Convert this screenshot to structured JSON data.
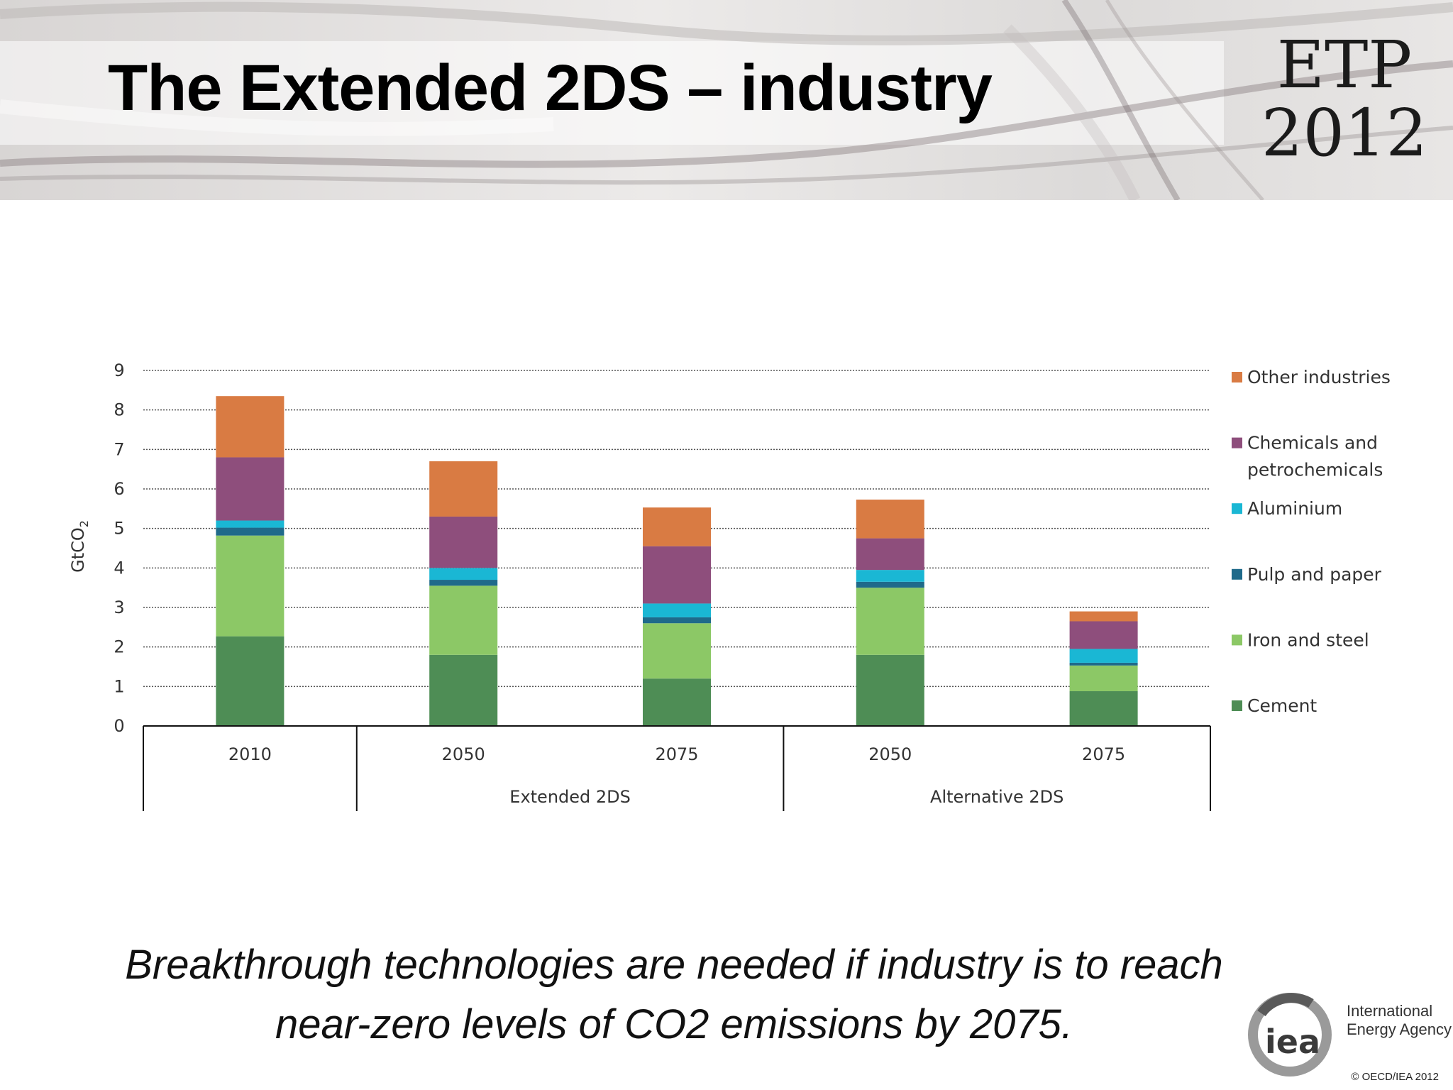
{
  "slide": {
    "title": "The Extended 2DS – industry",
    "badge_line1": "ETP",
    "badge_line2": "2012",
    "caption_line1": "Breakthrough technologies are needed if industry is to reach",
    "caption_line2": "near-zero levels of CO2 emissions by 2075.",
    "org_logo_text": "iea",
    "org_name_line1": "International",
    "org_name_line2": "Energy Agency",
    "copyright": "© OECD/IEA 2012"
  },
  "chart_data": {
    "type": "bar",
    "stacked": true,
    "ylabel": "GtCO",
    "ylabel_subscript": "2",
    "ylim": [
      0,
      9
    ],
    "yticks": [
      0,
      1,
      2,
      3,
      4,
      5,
      6,
      7,
      8,
      9
    ],
    "grid": true,
    "legend_position": "right",
    "categories": [
      "2010",
      "2050",
      "2075",
      "2050",
      "2075"
    ],
    "groups": [
      {
        "label": "",
        "start": 0,
        "end": 0
      },
      {
        "label": "Extended 2DS",
        "start": 1,
        "end": 2
      },
      {
        "label": "Alternative 2DS",
        "start": 3,
        "end": 4
      }
    ],
    "series": [
      {
        "name": "Cement",
        "color": "#4e8d55",
        "values": [
          2.27,
          1.8,
          1.2,
          1.8,
          0.88
        ]
      },
      {
        "name": "Iron and steel",
        "color": "#8cc866",
        "values": [
          2.55,
          1.75,
          1.4,
          1.7,
          0.65
        ]
      },
      {
        "name": "Pulp and paper",
        "color": "#1f6a8a",
        "values": [
          0.2,
          0.15,
          0.15,
          0.15,
          0.07
        ]
      },
      {
        "name": "Aluminium",
        "color": "#1ab7d4",
        "values": [
          0.18,
          0.3,
          0.35,
          0.3,
          0.35
        ]
      },
      {
        "name": "Chemicals and petrochemicals",
        "color": "#8e4e7c",
        "values": [
          1.6,
          1.3,
          1.45,
          0.8,
          0.7
        ]
      },
      {
        "name": "Other industries",
        "color": "#d97b43",
        "values": [
          1.55,
          1.4,
          0.98,
          0.98,
          0.25
        ]
      }
    ],
    "legend_order": [
      {
        "name": "Other industries",
        "lines": [
          "Other industries"
        ]
      },
      {
        "name": "Chemicals and petrochemicals",
        "lines": [
          "Chemicals and",
          "petrochemicals"
        ]
      },
      {
        "name": "Aluminium",
        "lines": [
          "Aluminium"
        ]
      },
      {
        "name": "Pulp and paper",
        "lines": [
          "Pulp and paper"
        ]
      },
      {
        "name": "Iron and steel",
        "lines": [
          "Iron and steel"
        ]
      },
      {
        "name": "Cement",
        "lines": [
          "Cement"
        ]
      }
    ]
  }
}
